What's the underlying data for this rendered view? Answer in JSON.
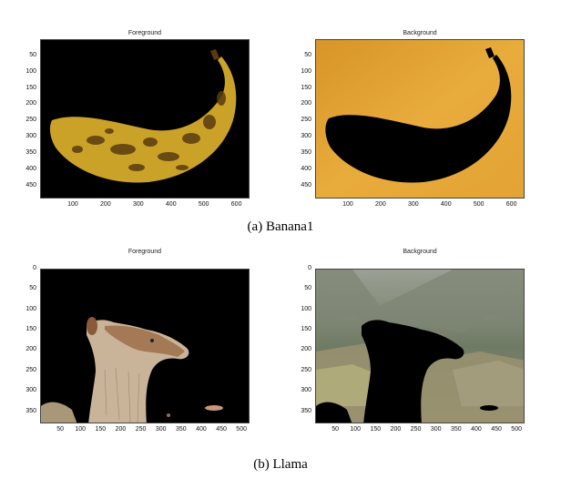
{
  "figure": {
    "rows": [
      {
        "caption": "(a)  Banana1",
        "panels": [
          {
            "title": "Foreground",
            "x_ticks": [
              "100",
              "200",
              "300",
              "400",
              "500",
              "600"
            ],
            "y_ticks": [
              "50",
              "100",
              "150",
              "200",
              "250",
              "300",
              "350",
              "400",
              "450"
            ],
            "content": "banana-foreground"
          },
          {
            "title": "Background",
            "x_ticks": [
              "100",
              "200",
              "300",
              "400",
              "500",
              "600"
            ],
            "y_ticks": [
              "50",
              "100",
              "150",
              "200",
              "250",
              "300",
              "350",
              "400",
              "450"
            ],
            "content": "banana-background"
          }
        ]
      },
      {
        "caption": "(b)  Llama",
        "panels": [
          {
            "title": "Foreground",
            "x_ticks": [
              "50",
              "100",
              "150",
              "200",
              "250",
              "300",
              "350",
              "400",
              "450",
              "500"
            ],
            "y_ticks": [
              "0",
              "50",
              "100",
              "150",
              "200",
              "250",
              "300",
              "350"
            ],
            "content": "llama-foreground"
          },
          {
            "title": "Background",
            "x_ticks": [
              "50",
              "100",
              "150",
              "200",
              "250",
              "300",
              "350",
              "400",
              "450",
              "500"
            ],
            "y_ticks": [
              "0",
              "50",
              "100",
              "150",
              "200",
              "250",
              "300",
              "350"
            ],
            "content": "llama-background"
          }
        ]
      }
    ]
  },
  "colors": {
    "mask": "#000000",
    "banana_yellow": "#c9a227",
    "banana_spot": "#5a3b10",
    "table_orange": "#e0a030",
    "sky": "#b9c3c4",
    "mountain": "#6f7a64",
    "ruins": "#8f8a70",
    "fur": "#c9b49a",
    "fur_dark": "#9a6a45"
  }
}
